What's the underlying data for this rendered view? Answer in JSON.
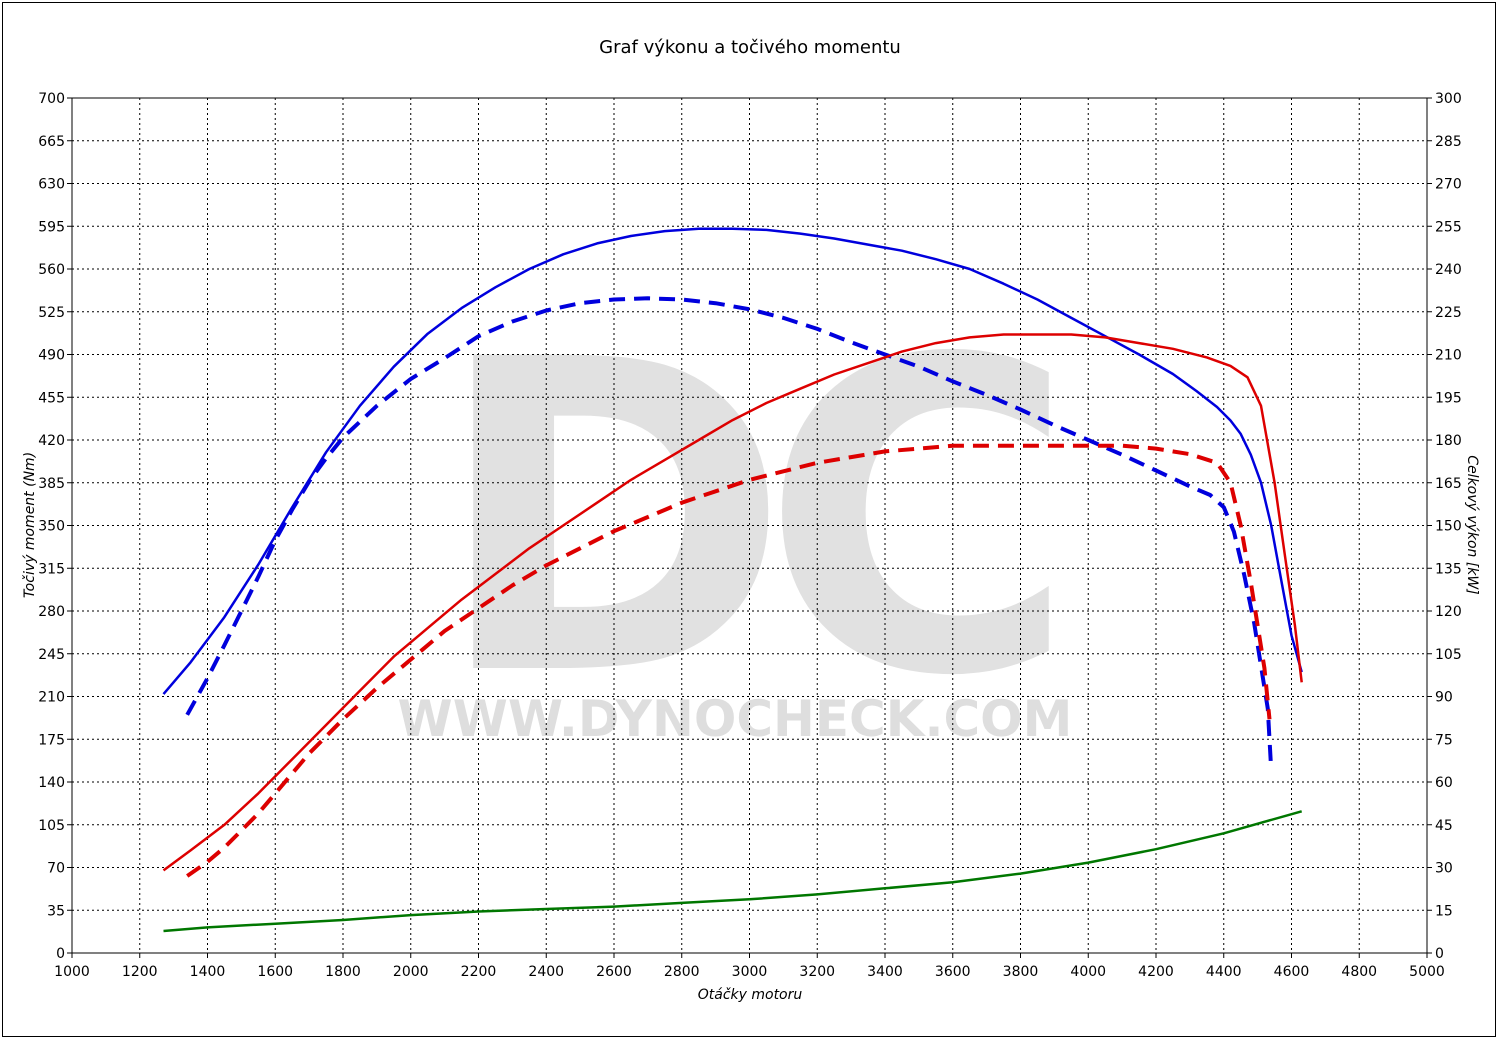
{
  "chart_data": {
    "type": "line",
    "title": "Graf výkonu a točivého momentu",
    "xlabel": "Otáčky motoru",
    "ylabel_left": "Točivý moment (Nm)",
    "ylabel_right": "Celkový výkon [kW]",
    "xlim": [
      1000,
      5000
    ],
    "ylim_left": [
      0,
      700
    ],
    "ylim_right": [
      0,
      300
    ],
    "x_ticks": [
      "1000",
      "1200",
      "1400",
      "1600",
      "1800",
      "2000",
      "2200",
      "2400",
      "2600",
      "2800",
      "3000",
      "3200",
      "3400",
      "3600",
      "3800",
      "4000",
      "4200",
      "4400",
      "4600",
      "4800",
      "5000"
    ],
    "y_left_ticks": [
      "0",
      "35",
      "70",
      "105",
      "140",
      "175",
      "210",
      "245",
      "280",
      "315",
      "350",
      "385",
      "420",
      "455",
      "490",
      "525",
      "560",
      "595",
      "630",
      "665",
      "700"
    ],
    "y_right_ticks": [
      "0",
      "15",
      "30",
      "45",
      "60",
      "75",
      "90",
      "105",
      "120",
      "135",
      "150",
      "165",
      "180",
      "195",
      "210",
      "225",
      "240",
      "255",
      "270",
      "285",
      "300"
    ],
    "grid": true,
    "watermark": {
      "logo": "DC",
      "url": "WWW.DYNOCHECK.COM"
    },
    "series": [
      {
        "axis": "left",
        "color": "#0000dd",
        "dash": false,
        "x": [
          1270,
          1350,
          1450,
          1550,
          1650,
          1750,
          1850,
          1950,
          2050,
          2150,
          2250,
          2350,
          2450,
          2550,
          2650,
          2750,
          2850,
          2950,
          3050,
          3150,
          3250,
          3350,
          3450,
          3550,
          3650,
          3750,
          3850,
          3950,
          4050,
          4150,
          4250,
          4320,
          4380,
          4420,
          4450,
          4480,
          4510,
          4540,
          4570,
          4600,
          4630
        ],
        "y": [
          212,
          238,
          275,
          318,
          365,
          410,
          448,
          480,
          507,
          528,
          545,
          560,
          572,
          581,
          587,
          591,
          593,
          593,
          592,
          589,
          585,
          580,
          575,
          568,
          560,
          548,
          535,
          520,
          505,
          490,
          474,
          460,
          447,
          436,
          425,
          408,
          385,
          350,
          305,
          260,
          230
        ]
      },
      {
        "axis": "left",
        "color": "#0000dd",
        "dash": true,
        "x": [
          1340,
          1400,
          1450,
          1500,
          1550,
          1600,
          1650,
          1700,
          1750,
          1800,
          1900,
          2000,
          2100,
          2200,
          2300,
          2400,
          2500,
          2600,
          2700,
          2800,
          2900,
          3000,
          3100,
          3200,
          3300,
          3400,
          3500,
          3600,
          3700,
          3800,
          3900,
          4000,
          4100,
          4200,
          4300,
          4360,
          4400,
          4430,
          4460,
          4490,
          4510,
          4530,
          4540
        ],
        "y": [
          195,
          225,
          252,
          280,
          308,
          338,
          363,
          386,
          405,
          422,
          448,
          470,
          487,
          505,
          517,
          526,
          532,
          535,
          536,
          535,
          532,
          527,
          520,
          511,
          500,
          490,
          480,
          468,
          457,
          445,
          432,
          420,
          408,
          395,
          382,
          375,
          365,
          345,
          310,
          270,
          235,
          200,
          150
        ]
      },
      {
        "axis": "right",
        "color": "#dd0000",
        "dash": false,
        "x": [
          1270,
          1350,
          1450,
          1550,
          1650,
          1750,
          1850,
          1950,
          2050,
          2150,
          2250,
          2350,
          2450,
          2550,
          2650,
          2750,
          2850,
          2950,
          3050,
          3150,
          3250,
          3350,
          3450,
          3550,
          3650,
          3750,
          3850,
          3950,
          4050,
          4150,
          4250,
          4350,
          4420,
          4470,
          4510,
          4550,
          4580,
          4610,
          4630
        ],
        "y": [
          29,
          36,
          45,
          56,
          68,
          80,
          92,
          104,
          114,
          124,
          133,
          142,
          150,
          158,
          166,
          173,
          180,
          187,
          193,
          198,
          203,
          207,
          211,
          214,
          216,
          217,
          217,
          217,
          216,
          214,
          212,
          209,
          206,
          202,
          192,
          165,
          140,
          115,
          95
        ]
      },
      {
        "axis": "right",
        "color": "#dd0000",
        "dash": true,
        "x": [
          1340,
          1400,
          1450,
          1500,
          1550,
          1600,
          1650,
          1700,
          1800,
          1900,
          2000,
          2100,
          2200,
          2300,
          2400,
          2500,
          2600,
          2700,
          2800,
          2900,
          3000,
          3100,
          3200,
          3300,
          3400,
          3500,
          3600,
          3700,
          3800,
          3900,
          4000,
          4100,
          4200,
          4300,
          4380,
          4420,
          4450,
          4480,
          4500,
          4520,
          4535
        ],
        "y": [
          27,
          32,
          37,
          43,
          49,
          56,
          63,
          70,
          82,
          93,
          103,
          113,
          121,
          129,
          136,
          142,
          148,
          153,
          158,
          162,
          166,
          169,
          172,
          174,
          176,
          177,
          178,
          178,
          178,
          178,
          178,
          178,
          177,
          175,
          172,
          165,
          150,
          130,
          115,
          100,
          82
        ]
      },
      {
        "axis": "left",
        "color": "#007700",
        "dash": false,
        "x": [
          1270,
          1400,
          1600,
          1800,
          2000,
          2200,
          2400,
          2600,
          2800,
          3000,
          3200,
          3400,
          3600,
          3800,
          4000,
          4200,
          4400,
          4630
        ],
        "y": [
          18,
          21,
          24,
          27,
          31,
          34,
          36,
          38,
          41,
          44,
          48,
          53,
          58,
          65,
          74,
          85,
          98,
          116
        ]
      }
    ]
  }
}
